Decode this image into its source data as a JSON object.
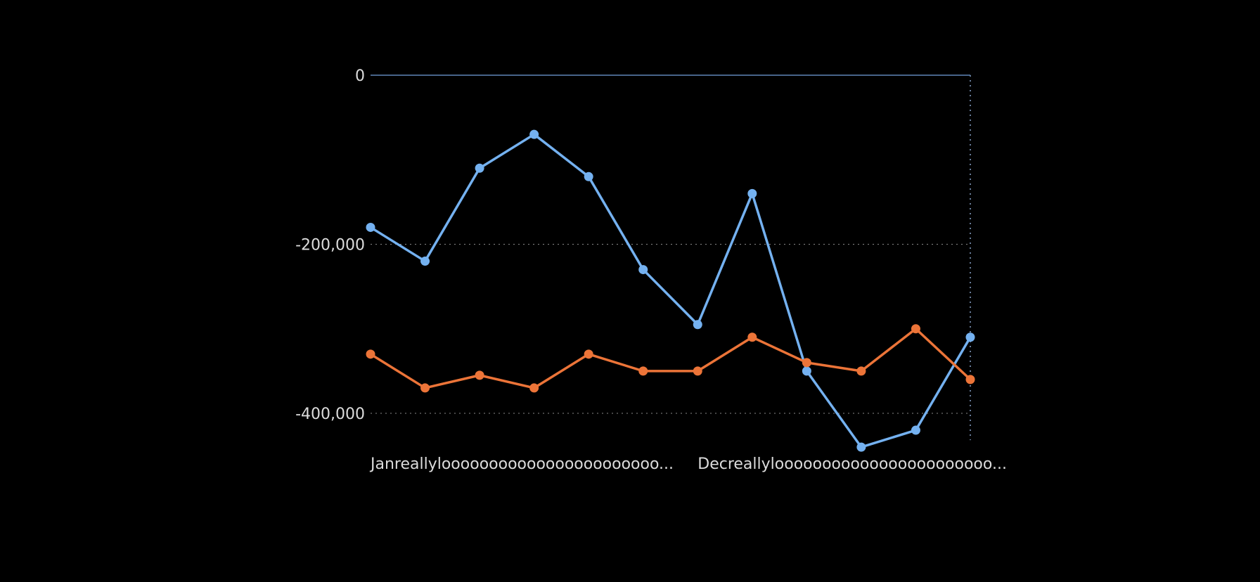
{
  "chart_data": {
    "type": "line",
    "title": "",
    "xlabel": "",
    "ylabel": "",
    "ylim": [
      -430000,
      0
    ],
    "yticks": [
      0,
      -200000,
      -400000
    ],
    "ytick_labels": [
      "0",
      "-200,000",
      "-400,000"
    ],
    "grid": true,
    "x_count": 12,
    "x_tick_labels": [
      {
        "index": 0,
        "label": "Janreallylooooooooooooooooooooooo..."
      },
      {
        "index": 6,
        "label": "Decreallylooooooooooooooooooooooo..."
      }
    ],
    "series": [
      {
        "color": "#74b1f0",
        "values": [
          -180000,
          -220000,
          -110000,
          -70000,
          -120000,
          -230000,
          -295000,
          -140000,
          -350000,
          -440000,
          -420000,
          -310000
        ]
      },
      {
        "color": "#ec7438",
        "values": [
          -330000,
          -370000,
          -355000,
          -370000,
          -330000,
          -350000,
          -350000,
          -310000,
          -340000,
          -350000,
          -300000,
          -360000
        ]
      }
    ],
    "legend": "none"
  }
}
